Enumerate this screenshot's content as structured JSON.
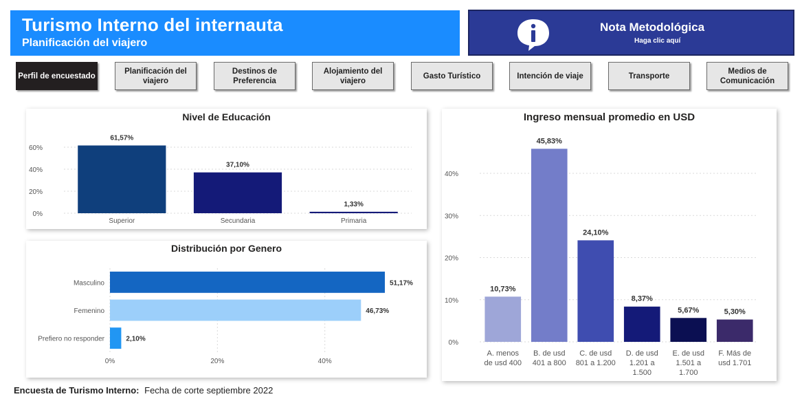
{
  "header": {
    "title": "Turismo Interno del internauta",
    "subtitle": "Planificación del viajero"
  },
  "nota": {
    "title": "Nota Metodológica",
    "subtitle": "Haga clic aquí",
    "icon": "info-icon"
  },
  "tabs": [
    {
      "label": "Perfil de encuestado",
      "active": true
    },
    {
      "label": "Planificación del viajero",
      "active": false
    },
    {
      "label": "Destinos de Preferencia",
      "active": false
    },
    {
      "label": "Alojamiento del viajero",
      "active": false
    },
    {
      "label": "Gasto Turístico",
      "active": false
    },
    {
      "label": "Intención de viaje",
      "active": false
    },
    {
      "label": "Transporte",
      "active": false
    },
    {
      "label": "Medios de Comunicación",
      "active": false
    }
  ],
  "footer": {
    "label": "Encuesta de Turismo Interno:",
    "value": "Fecha de corte septiembre 2022"
  },
  "chart_data": [
    {
      "id": "educacion",
      "type": "bar",
      "title": "Nivel de Educación",
      "categories": [
        "Superior",
        "Secundaria",
        "Primaria"
      ],
      "values": [
        61.57,
        37.1,
        1.33
      ],
      "data_labels": [
        "61,57%",
        "37,10%",
        "1,33%"
      ],
      "colors": [
        "#0f3f7c",
        "#141a78",
        "#141a78"
      ],
      "yticks": [
        "0%",
        "20%",
        "40%",
        "60%"
      ],
      "ylim": [
        0,
        70
      ]
    },
    {
      "id": "genero",
      "type": "bar",
      "orientation": "horizontal",
      "title": "Distribución por Genero",
      "categories": [
        "Masculino",
        "Femenino",
        "Prefiero no responder"
      ],
      "values": [
        51.17,
        46.73,
        2.1
      ],
      "data_labels": [
        "51,17%",
        "46,73%",
        "2,10%"
      ],
      "colors": [
        "#1466c2",
        "#9ccffa",
        "#2196f3"
      ],
      "xticks": [
        "0%",
        "20%",
        "40%"
      ],
      "xlim": [
        0,
        51.17
      ]
    },
    {
      "id": "ingreso",
      "type": "bar",
      "title": "Ingreso mensual promedio en USD",
      "categories": [
        [
          "A. menos",
          "de usd 400"
        ],
        [
          "B. de usd",
          "401 a 800"
        ],
        [
          "C. de usd",
          "801 a 1.200"
        ],
        [
          "D. de usd",
          "1.201 a",
          "1.500"
        ],
        [
          "E. de usd",
          "1.501 a",
          "1.700"
        ],
        [
          "F. Más de",
          "usd 1.701"
        ]
      ],
      "values": [
        10.73,
        45.83,
        24.1,
        8.37,
        5.67,
        5.3
      ],
      "data_labels": [
        "10,73%",
        "45,83%",
        "24,10%",
        "8,37%",
        "5,67%",
        "5,30%"
      ],
      "colors": [
        "#9ea6d8",
        "#737dc9",
        "#3f4db0",
        "#141a78",
        "#0b0f52",
        "#3b2a6a"
      ],
      "yticks": [
        "0%",
        "10%",
        "20%",
        "30%",
        "40%"
      ],
      "ylim": [
        0,
        48
      ]
    }
  ]
}
